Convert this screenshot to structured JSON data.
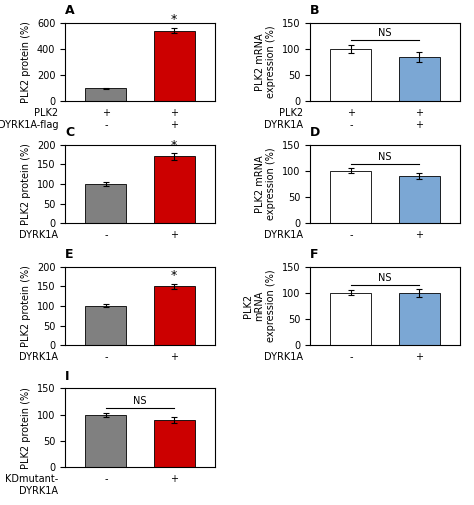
{
  "chart_data": [
    {
      "type": "bar",
      "title": "A",
      "categories": [
        "+\n-",
        "+\n+"
      ],
      "row_labels": "PLK2\nDYRK1A-flag",
      "values": [
        100,
        540
      ],
      "errors": [
        5,
        20
      ],
      "colors": [
        "#808080",
        "#cc0000"
      ],
      "ylabel": "PLK2 protein (%)",
      "ylim": [
        0,
        600
      ],
      "yticks": [
        0,
        200,
        400,
        600
      ],
      "annotations": [
        {
          "text": "*",
          "x": 1
        }
      ]
    },
    {
      "type": "bar",
      "title": "B",
      "categories": [
        "+\n-",
        "+\n+"
      ],
      "row_labels": "PLK2\nDYRK1A",
      "values": [
        100,
        85
      ],
      "errors": [
        8,
        10
      ],
      "colors": [
        "#ffffff",
        "#7ba7d4"
      ],
      "ylabel": "PLK2 mRNA\nexpression (%)",
      "ylim": [
        0,
        150
      ],
      "yticks": [
        0,
        50,
        100,
        150
      ],
      "annotations": [
        {
          "text": "NS",
          "x": [
            0,
            1
          ]
        }
      ]
    },
    {
      "type": "bar",
      "title": "C",
      "categories": [
        "-",
        "+"
      ],
      "row_labels": "DYRK1A",
      "values": [
        100,
        170
      ],
      "errors": [
        5,
        8
      ],
      "colors": [
        "#808080",
        "#cc0000"
      ],
      "ylabel": "PLK2 protein (%)",
      "ylim": [
        0,
        200
      ],
      "yticks": [
        0,
        50,
        100,
        150,
        200
      ],
      "annotations": [
        {
          "text": "*",
          "x": 1
        }
      ]
    },
    {
      "type": "bar",
      "title": "D",
      "categories": [
        "-",
        "+"
      ],
      "row_labels": "DYRK1A",
      "values": [
        100,
        90
      ],
      "errors": [
        5,
        6
      ],
      "colors": [
        "#ffffff",
        "#7ba7d4"
      ],
      "ylabel": "PLK2 mRNA\nexpression (%)",
      "ylim": [
        0,
        150
      ],
      "yticks": [
        0,
        50,
        100,
        150
      ],
      "annotations": [
        {
          "text": "NS",
          "x": [
            0,
            1
          ]
        }
      ]
    },
    {
      "type": "bar",
      "title": "E",
      "categories": [
        "-",
        "+"
      ],
      "row_labels": "DYRK1A",
      "values": [
        100,
        150
      ],
      "errors": [
        4,
        6
      ],
      "colors": [
        "#808080",
        "#cc0000"
      ],
      "ylabel": "PLK2 protein (%)",
      "ylim": [
        0,
        200
      ],
      "yticks": [
        0,
        50,
        100,
        150,
        200
      ],
      "annotations": [
        {
          "text": "*",
          "x": 1
        }
      ]
    },
    {
      "type": "bar",
      "title": "F",
      "categories": [
        "-",
        "+"
      ],
      "row_labels": "DYRK1A",
      "values": [
        100,
        100
      ],
      "errors": [
        5,
        8
      ],
      "colors": [
        "#ffffff",
        "#7ba7d4"
      ],
      "ylabel": "PLK2\nmRNA\nexpression (%)",
      "ylim": [
        0,
        150
      ],
      "yticks": [
        0,
        50,
        100,
        150
      ],
      "annotations": [
        {
          "text": "NS",
          "x": [
            0,
            1
          ]
        }
      ]
    },
    {
      "type": "bar",
      "title": "I",
      "categories": [
        "-",
        "+"
      ],
      "row_labels": "KDmutant-\nDYRK1A",
      "values": [
        100,
        90
      ],
      "errors": [
        4,
        6
      ],
      "colors": [
        "#808080",
        "#cc0000"
      ],
      "ylabel": "PLK2 protein (%)",
      "ylim": [
        0,
        150
      ],
      "yticks": [
        0,
        50,
        100,
        150
      ],
      "annotations": [
        {
          "text": "NS",
          "x": [
            0,
            1
          ]
        }
      ]
    }
  ]
}
